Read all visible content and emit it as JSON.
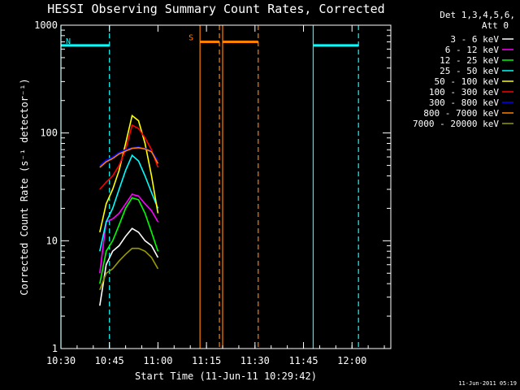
{
  "chart_data": {
    "type": "line",
    "title": "HESSI Observing Summary Count Rates, Corrected",
    "xlabel": "Start Time (11-Jun-11 10:29:42)",
    "ylabel": "Corrected Count Rate (s⁻¹ detector⁻¹)",
    "yscale": "log",
    "ylim": [
      1,
      1000
    ],
    "xlim": [
      "10:30",
      "12:12"
    ],
    "x_ticks": [
      "10:30",
      "10:45",
      "11:00",
      "11:15",
      "11:30",
      "11:45",
      "12:00"
    ],
    "y_ticks": [
      "1",
      "10",
      "100",
      "1000"
    ],
    "legend_title": [
      "Det 1,3,4,5,6,",
      "Att 0"
    ],
    "legend_placement": "right",
    "grid": false,
    "series": [
      {
        "name": "3 - 6 keV",
        "color": "#ffffff",
        "x": [
          "10:42",
          "10:44",
          "10:46",
          "10:48",
          "10:50",
          "10:52",
          "10:54",
          "10:56",
          "10:58",
          "11:00"
        ],
        "y": [
          2.5,
          6,
          8,
          9,
          11,
          13,
          12,
          10,
          9,
          7
        ]
      },
      {
        "name": "6 - 12 keV",
        "color": "#ff00ff",
        "x": [
          "10:42",
          "10:44",
          "10:46",
          "10:48",
          "10:50",
          "10:52",
          "10:54",
          "10:56",
          "10:58",
          "11:00"
        ],
        "y": [
          5,
          15,
          16,
          18,
          22,
          27,
          26,
          22,
          19,
          15
        ]
      },
      {
        "name": "12 - 25 keV",
        "color": "#00ff00",
        "x": [
          "10:42",
          "10:44",
          "10:46",
          "10:48",
          "10:50",
          "10:52",
          "10:54",
          "10:56",
          "10:58",
          "11:00"
        ],
        "y": [
          4,
          8,
          10,
          14,
          20,
          25,
          24,
          18,
          12,
          8
        ]
      },
      {
        "name": "25 - 50 keV",
        "color": "#00ffff",
        "x": [
          "10:42",
          "10:44",
          "10:46",
          "10:48",
          "10:50",
          "10:52",
          "10:54",
          "10:56",
          "10:58",
          "11:00"
        ],
        "y": [
          8,
          15,
          20,
          30,
          45,
          62,
          55,
          40,
          28,
          20
        ]
      },
      {
        "name": "50 - 100 keV",
        "color": "#ffff00",
        "x": [
          "10:42",
          "10:44",
          "10:46",
          "10:48",
          "10:50",
          "10:52",
          "10:54",
          "10:56",
          "10:58",
          "11:00"
        ],
        "y": [
          12,
          22,
          30,
          45,
          80,
          145,
          130,
          80,
          40,
          18
        ]
      },
      {
        "name": "100 - 300 keV",
        "color": "#ff0000",
        "x": [
          "10:42",
          "10:44",
          "10:46",
          "10:48",
          "10:50",
          "10:52",
          "10:54",
          "10:56",
          "10:58",
          "11:00"
        ],
        "y": [
          30,
          35,
          40,
          50,
          70,
          118,
          110,
          90,
          70,
          48
        ]
      },
      {
        "name": "300 - 800 keV",
        "color": "#0000ff",
        "x": [
          "10:42",
          "10:44",
          "10:46",
          "10:48",
          "10:50",
          "10:52",
          "10:54",
          "10:56",
          "10:58",
          "11:00"
        ],
        "y": [
          50,
          56,
          60,
          66,
          70,
          73,
          74,
          72,
          68,
          55
        ]
      },
      {
        "name": "800 - 7000 keV",
        "color": "#ff8000",
        "x": [
          "10:42",
          "10:44",
          "10:46",
          "10:48",
          "10:50",
          "10:52",
          "10:54",
          "10:56",
          "10:58",
          "11:00"
        ],
        "y": [
          48,
          54,
          58,
          64,
          68,
          72,
          73,
          71,
          67,
          52
        ]
      },
      {
        "name": "7000 - 20000 keV",
        "color": "#999900",
        "x": [
          "10:42",
          "10:44",
          "10:46",
          "10:48",
          "10:50",
          "10:52",
          "10:54",
          "10:56",
          "10:58",
          "11:00"
        ],
        "y": [
          3.5,
          5,
          5.5,
          6.5,
          7.5,
          8.5,
          8.5,
          8,
          7,
          5.5
        ]
      }
    ],
    "flags": [
      {
        "label": "N",
        "color": "#00ffff",
        "start": "10:30",
        "end": "10:45",
        "level": 650
      },
      {
        "label": "S",
        "color": "#ff8000",
        "start": "11:13",
        "end": "11:19",
        "level": 700
      },
      {
        "label": "",
        "color": "#ff8000",
        "start": "11:20",
        "end": "11:31",
        "level": 700
      },
      {
        "label": "",
        "color": "#00ffff",
        "start": "11:48",
        "end": "12:02",
        "level": 650
      }
    ],
    "markers": [
      {
        "time": "10:30",
        "color": "#00ffff",
        "style": "solid"
      },
      {
        "time": "10:45",
        "color": "#00ffff",
        "style": "dashed"
      },
      {
        "time": "11:13",
        "color": "#ff8000",
        "style": "solid"
      },
      {
        "time": "11:19",
        "color": "#ff8000",
        "style": "dashed"
      },
      {
        "time": "11:20",
        "color": "#ff8000",
        "style": "solid"
      },
      {
        "time": "11:31",
        "color": "#ff8000",
        "style": "dashed"
      },
      {
        "time": "11:48",
        "color": "#00ffff",
        "style": "solid"
      },
      {
        "time": "12:02",
        "color": "#00ffff",
        "style": "dashed"
      }
    ],
    "timestamp": "11-Jun-2011 05:19"
  }
}
